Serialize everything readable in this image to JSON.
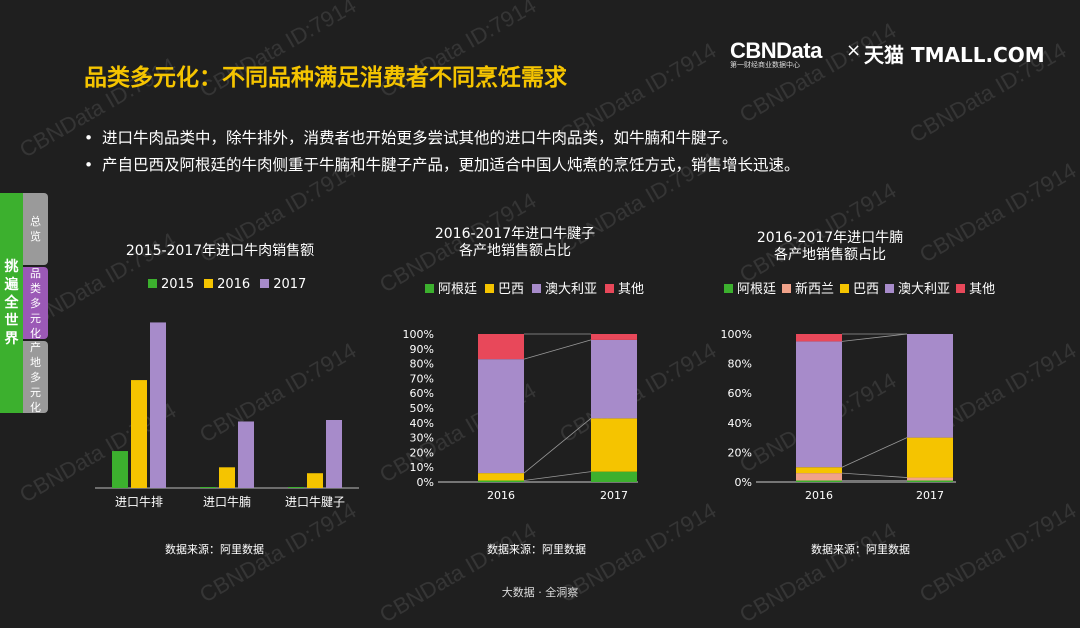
{
  "title": "品类多元化：不同品种满足消费者不同烹饪需求",
  "brand": {
    "cbn": "CBNData",
    "cbn_sub": "第一财经商业数据中心",
    "x": "×",
    "tmall": "天猫 TMALL.COM"
  },
  "bullets": [
    "进口牛肉品类中，除牛排外，消费者也开始更多尝试其他的进口牛肉品类，如牛腩和牛腱子。",
    "产自巴西及阿根廷的牛肉侧重于牛腩和牛腱子产品，更加适合中国人炖煮的烹饪方式，销售增长迅速。"
  ],
  "nav": {
    "main": "挑遍全世界",
    "overview": "总览",
    "category": "品类多元化",
    "origin": "产地多元化"
  },
  "footer": "大数据 · 全洞察",
  "watermark": "CBNData ID:7914",
  "colors": {
    "green": "#3cb02e",
    "yellow": "#f5c400",
    "purple": "#a78bca",
    "red": "#e8485a",
    "salmon": "#f0a28a",
    "accent": "#f5c400"
  },
  "chart_data": [
    {
      "type": "bar",
      "title": "2015-2017年进口牛肉销售额",
      "categories": [
        "进口牛排",
        "进口牛腩",
        "进口牛腱子"
      ],
      "series": [
        {
          "name": "2015",
          "values": [
            25,
            0.5,
            0.5
          ],
          "color": "#3cb02e"
        },
        {
          "name": "2016",
          "values": [
            73,
            14,
            10
          ],
          "color": "#f5c400"
        },
        {
          "name": "2017",
          "values": [
            112,
            45,
            46
          ],
          "color": "#a78bca"
        }
      ],
      "ylim": [
        0,
        115
      ],
      "source": "数据来源：阿里数据"
    },
    {
      "type": "bar",
      "stacked": true,
      "title_line1": "2016-2017年进口牛腱子",
      "title_line2": "各产地销售额占比",
      "categories": [
        "2016",
        "2017"
      ],
      "series": [
        {
          "name": "阿根廷",
          "values": [
            1,
            7
          ],
          "color": "#3cb02e"
        },
        {
          "name": "巴西",
          "values": [
            5,
            36
          ],
          "color": "#f5c400"
        },
        {
          "name": "澳大利亚",
          "values": [
            77,
            53
          ],
          "color": "#a78bca"
        },
        {
          "name": "其他",
          "values": [
            17,
            4
          ],
          "color": "#e8485a"
        }
      ],
      "yticks": [
        "0%",
        "10%",
        "20%",
        "30%",
        "40%",
        "50%",
        "60%",
        "70%",
        "80%",
        "90%",
        "100%"
      ],
      "ylim": [
        0,
        100
      ],
      "source": "数据来源：阿里数据"
    },
    {
      "type": "bar",
      "stacked": true,
      "title_line1": "2016-2017年进口牛腩",
      "title_line2": "各产地销售额占比",
      "categories": [
        "2016",
        "2017"
      ],
      "series": [
        {
          "name": "阿根廷",
          "values": [
            1,
            1
          ],
          "color": "#3cb02e"
        },
        {
          "name": "新西兰",
          "values": [
            5,
            2
          ],
          "color": "#f0a28a"
        },
        {
          "name": "巴西",
          "values": [
            4,
            27
          ],
          "color": "#f5c400"
        },
        {
          "name": "澳大利亚",
          "values": [
            85,
            70
          ],
          "color": "#a78bca"
        },
        {
          "name": "其他",
          "values": [
            5,
            0
          ],
          "color": "#e8485a"
        }
      ],
      "yticks": [
        "0%",
        "20%",
        "40%",
        "60%",
        "80%",
        "100%"
      ],
      "ylim": [
        0,
        100
      ],
      "source": "数据来源：阿里数据"
    }
  ]
}
